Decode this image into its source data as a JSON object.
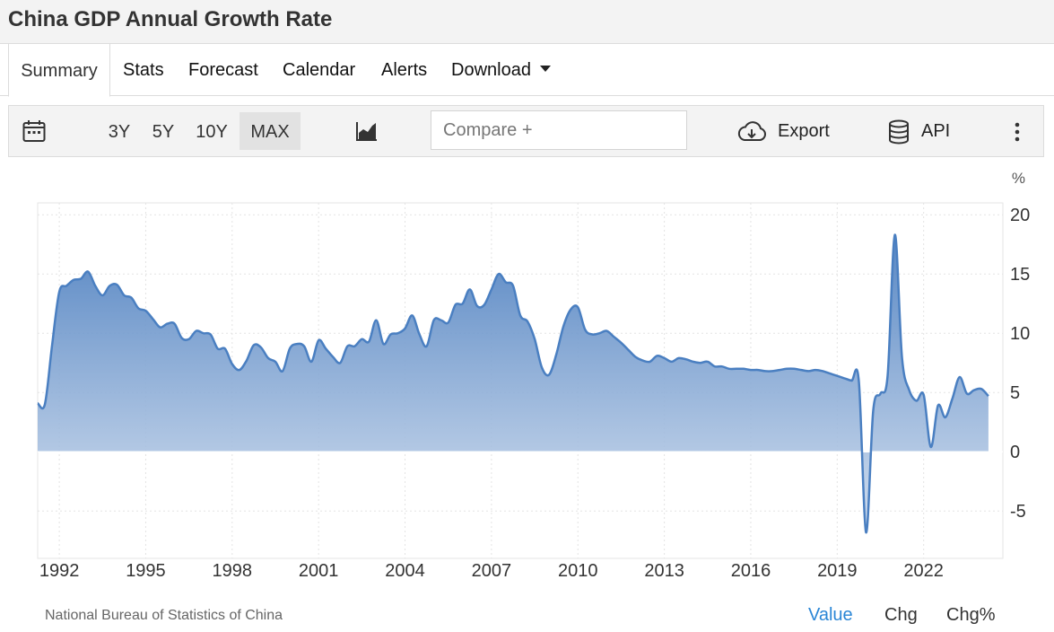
{
  "page": {
    "title": "China GDP Annual Growth Rate"
  },
  "tabs": [
    {
      "label": "Summary",
      "active": true
    },
    {
      "label": "Stats"
    },
    {
      "label": "Forecast"
    },
    {
      "label": "Calendar"
    },
    {
      "label": "Alerts"
    },
    {
      "label": "Download"
    }
  ],
  "toolbar": {
    "ranges": [
      "3Y",
      "5Y",
      "10Y",
      "MAX"
    ],
    "active_range": "MAX",
    "compare_placeholder": "Compare +",
    "export_label": "Export",
    "api_label": "API",
    "icons": [
      "calendar-icon",
      "area-chart-icon",
      "cloud-download-icon",
      "database-icon",
      "more-vertical-icon"
    ]
  },
  "footer": {
    "source": "National Bureau of Statistics of China",
    "modes": [
      "Value",
      "Chg",
      "Chg%"
    ],
    "active_mode": "Value"
  },
  "colors": {
    "line": "#4a7fc1",
    "active_link": "#2a86d6"
  },
  "chart_data": {
    "type": "area",
    "unit": "%",
    "y_ticks": [
      "20",
      "15",
      "10",
      "5",
      "0",
      "-5"
    ],
    "x_ticks": [
      "1992",
      "1995",
      "1998",
      "2001",
      "2004",
      "2007",
      "2010",
      "2013",
      "2016",
      "2019",
      "2022"
    ],
    "ylim": [
      -9,
      21
    ],
    "xlim": [
      1991.25,
      2024.75
    ],
    "grid": true,
    "series": [
      {
        "values": [
          [
            1991.25,
            4.1
          ],
          [
            1991.5,
            4.0
          ],
          [
            1991.75,
            9.0
          ],
          [
            1992.0,
            13.5
          ],
          [
            1992.25,
            14.0
          ],
          [
            1992.5,
            14.5
          ],
          [
            1992.75,
            14.6
          ],
          [
            1993.0,
            15.2
          ],
          [
            1993.25,
            14.0
          ],
          [
            1993.5,
            13.2
          ],
          [
            1993.75,
            14.0
          ],
          [
            1994.0,
            14.1
          ],
          [
            1994.25,
            13.2
          ],
          [
            1994.5,
            13.0
          ],
          [
            1994.75,
            12.1
          ],
          [
            1995.0,
            11.9
          ],
          [
            1995.25,
            11.2
          ],
          [
            1995.5,
            10.5
          ],
          [
            1995.75,
            10.8
          ],
          [
            1996.0,
            10.8
          ],
          [
            1996.25,
            9.6
          ],
          [
            1996.5,
            9.5
          ],
          [
            1996.75,
            10.2
          ],
          [
            1997.0,
            10.0
          ],
          [
            1997.25,
            9.9
          ],
          [
            1997.5,
            8.7
          ],
          [
            1997.75,
            8.7
          ],
          [
            1998.0,
            7.4
          ],
          [
            1998.25,
            6.9
          ],
          [
            1998.5,
            7.7
          ],
          [
            1998.75,
            9.0
          ],
          [
            1999.0,
            8.8
          ],
          [
            1999.25,
            7.9
          ],
          [
            1999.5,
            7.6
          ],
          [
            1999.75,
            6.8
          ],
          [
            2000.0,
            8.7
          ],
          [
            2000.25,
            9.1
          ],
          [
            2000.5,
            8.9
          ],
          [
            2000.75,
            7.6
          ],
          [
            2001.0,
            9.4
          ],
          [
            2001.25,
            8.7
          ],
          [
            2001.5,
            8.0
          ],
          [
            2001.75,
            7.5
          ],
          [
            2002.0,
            8.9
          ],
          [
            2002.25,
            8.9
          ],
          [
            2002.5,
            9.5
          ],
          [
            2002.75,
            9.3
          ],
          [
            2003.0,
            11.1
          ],
          [
            2003.25,
            9.1
          ],
          [
            2003.5,
            9.9
          ],
          [
            2003.75,
            10.0
          ],
          [
            2004.0,
            10.4
          ],
          [
            2004.25,
            11.5
          ],
          [
            2004.5,
            9.9
          ],
          [
            2004.75,
            8.9
          ],
          [
            2005.0,
            11.1
          ],
          [
            2005.25,
            11.1
          ],
          [
            2005.5,
            10.9
          ],
          [
            2005.75,
            12.4
          ],
          [
            2006.0,
            12.5
          ],
          [
            2006.25,
            13.7
          ],
          [
            2006.5,
            12.3
          ],
          [
            2006.75,
            12.4
          ],
          [
            2007.0,
            13.7
          ],
          [
            2007.25,
            15.0
          ],
          [
            2007.5,
            14.3
          ],
          [
            2007.75,
            14.0
          ],
          [
            2008.0,
            11.5
          ],
          [
            2008.25,
            11.0
          ],
          [
            2008.5,
            9.5
          ],
          [
            2008.75,
            7.1
          ],
          [
            2009.0,
            6.5
          ],
          [
            2009.25,
            8.2
          ],
          [
            2009.5,
            10.6
          ],
          [
            2009.75,
            12.0
          ],
          [
            2010.0,
            12.2
          ],
          [
            2010.25,
            10.3
          ],
          [
            2010.5,
            9.9
          ],
          [
            2010.75,
            10.0
          ],
          [
            2011.0,
            10.2
          ],
          [
            2011.25,
            9.7
          ],
          [
            2011.5,
            9.2
          ],
          [
            2011.75,
            8.6
          ],
          [
            2012.0,
            8.0
          ],
          [
            2012.25,
            7.7
          ],
          [
            2012.5,
            7.6
          ],
          [
            2012.75,
            8.1
          ],
          [
            2013.0,
            7.9
          ],
          [
            2013.25,
            7.6
          ],
          [
            2013.5,
            7.9
          ],
          [
            2013.75,
            7.8
          ],
          [
            2014.0,
            7.6
          ],
          [
            2014.25,
            7.5
          ],
          [
            2014.5,
            7.6
          ],
          [
            2014.75,
            7.2
          ],
          [
            2015.0,
            7.2
          ],
          [
            2015.25,
            7.0
          ],
          [
            2015.5,
            7.0
          ],
          [
            2015.75,
            7.0
          ],
          [
            2016.0,
            6.9
          ],
          [
            2016.25,
            6.9
          ],
          [
            2016.5,
            6.8
          ],
          [
            2016.75,
            6.8
          ],
          [
            2017.0,
            6.9
          ],
          [
            2017.25,
            7.0
          ],
          [
            2017.5,
            7.0
          ],
          [
            2017.75,
            6.9
          ],
          [
            2018.0,
            6.8
          ],
          [
            2018.25,
            6.9
          ],
          [
            2018.5,
            6.8
          ],
          [
            2018.75,
            6.6
          ],
          [
            2019.0,
            6.4
          ],
          [
            2019.25,
            6.2
          ],
          [
            2019.5,
            6.0
          ],
          [
            2019.75,
            6.0
          ],
          [
            2020.0,
            -6.8
          ],
          [
            2020.25,
            3.5
          ],
          [
            2020.5,
            4.9
          ],
          [
            2020.75,
            6.4
          ],
          [
            2021.0,
            18.3
          ],
          [
            2021.25,
            7.9
          ],
          [
            2021.5,
            5.2
          ],
          [
            2021.75,
            4.3
          ],
          [
            2022.0,
            4.8
          ],
          [
            2022.25,
            0.4
          ],
          [
            2022.5,
            3.9
          ],
          [
            2022.75,
            2.9
          ],
          [
            2023.0,
            4.5
          ],
          [
            2023.25,
            6.3
          ],
          [
            2023.5,
            4.9
          ],
          [
            2023.75,
            5.2
          ],
          [
            2024.0,
            5.3
          ],
          [
            2024.25,
            4.7
          ]
        ]
      }
    ]
  }
}
